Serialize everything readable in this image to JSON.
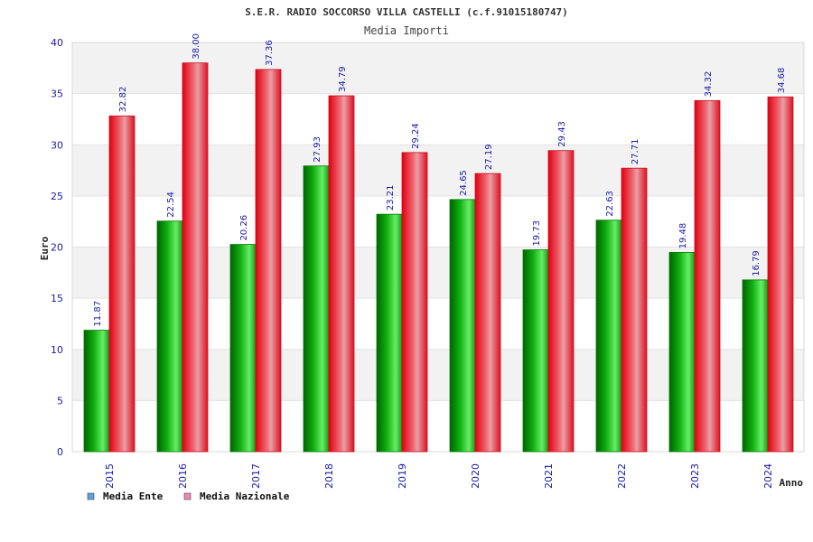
{
  "chart_data": {
    "type": "bar",
    "title": "S.E.R. RADIO SOCCORSO VILLA CASTELLI (c.f.91015180747)",
    "subtitle": "Media Importi",
    "xlabel": "Anno",
    "ylabel": "Euro",
    "ylim": [
      0,
      40
    ],
    "yticks": [
      0,
      5,
      10,
      15,
      20,
      25,
      30,
      35,
      40
    ],
    "grid": "horizontal bands",
    "legend_position": "bottom-left",
    "categories": [
      "2015",
      "2016",
      "2017",
      "2018",
      "2019",
      "2020",
      "2021",
      "2022",
      "2023",
      "2024"
    ],
    "series": [
      {
        "name": "Media Ente",
        "legend_color": "#5aa0e8",
        "bar_color": "#1fbf1f",
        "values": [
          11.87,
          22.54,
          20.26,
          27.93,
          23.21,
          24.65,
          19.73,
          22.63,
          19.48,
          16.79
        ],
        "labels": [
          "11.87",
          "22.54",
          "20.26",
          "27.93",
          "23.21",
          "24.65",
          "19.73",
          "22.63",
          "19.48",
          "16.79"
        ]
      },
      {
        "name": "Media Nazionale",
        "legend_color": "#e88ab8",
        "bar_color": "#ee2030",
        "values": [
          32.82,
          38.0,
          37.36,
          34.79,
          29.24,
          27.19,
          29.43,
          27.71,
          34.32,
          34.68
        ],
        "labels": [
          "32.82",
          "38.00",
          "37.36",
          "34.79",
          "29.24",
          "27.19",
          "29.43",
          "27.71",
          "34.32",
          "34.68"
        ]
      }
    ]
  }
}
